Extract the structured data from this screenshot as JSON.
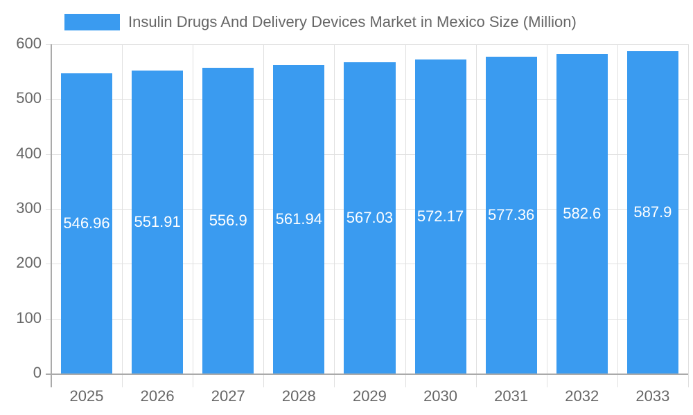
{
  "chart_data": {
    "type": "bar",
    "title": "",
    "legend": [
      "Insulin Drugs And Delivery Devices Market in Mexico Size (Million)"
    ],
    "legend_position": "top",
    "categories": [
      "2025",
      "2026",
      "2027",
      "2028",
      "2029",
      "2030",
      "2031",
      "2032",
      "2033"
    ],
    "series": [
      {
        "name": "Insulin Drugs And Delivery Devices Market in Mexico Size (Million)",
        "values": [
          546.96,
          551.91,
          556.9,
          561.94,
          567.03,
          572.17,
          577.36,
          582.6,
          587.9
        ],
        "labels": [
          "546.96",
          "551.91",
          "556.9",
          "561.94",
          "567.03",
          "572.17",
          "577.36",
          "582.6",
          "587.9"
        ],
        "color": "#3a9bf0"
      }
    ],
    "xlabel": "",
    "ylabel": "",
    "ylim": [
      0,
      600
    ],
    "yticks": [
      "0",
      "100",
      "200",
      "300",
      "400",
      "500",
      "600"
    ],
    "grid": true
  }
}
